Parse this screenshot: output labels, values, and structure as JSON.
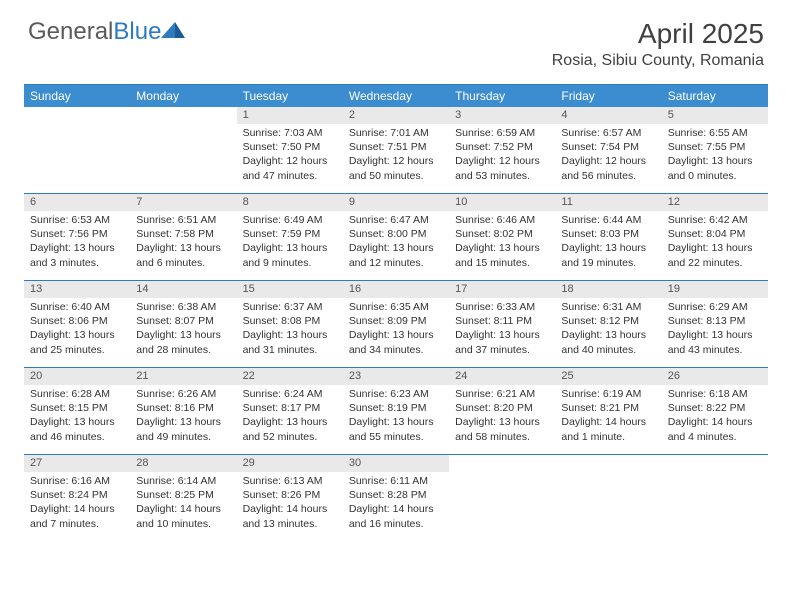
{
  "logo": {
    "text_general": "General",
    "text_blue": "Blue"
  },
  "title": "April 2025",
  "location": "Rosia, Sibiu County, Romania",
  "colors": {
    "header_blue": "#3c8cd0",
    "rule_blue": "#2f7bbf",
    "daybar_gray": "#e9e9e9",
    "text_gray": "#555555",
    "body_text": "#333333",
    "logo_gray": "#5a5a5a"
  },
  "dow": [
    "Sunday",
    "Monday",
    "Tuesday",
    "Wednesday",
    "Thursday",
    "Friday",
    "Saturday"
  ],
  "weeks": [
    [
      {
        "n": "",
        "sunrise": "",
        "sunset": "",
        "daylight": ""
      },
      {
        "n": "",
        "sunrise": "",
        "sunset": "",
        "daylight": ""
      },
      {
        "n": "1",
        "sunrise": "Sunrise: 7:03 AM",
        "sunset": "Sunset: 7:50 PM",
        "daylight": "Daylight: 12 hours and 47 minutes."
      },
      {
        "n": "2",
        "sunrise": "Sunrise: 7:01 AM",
        "sunset": "Sunset: 7:51 PM",
        "daylight": "Daylight: 12 hours and 50 minutes."
      },
      {
        "n": "3",
        "sunrise": "Sunrise: 6:59 AM",
        "sunset": "Sunset: 7:52 PM",
        "daylight": "Daylight: 12 hours and 53 minutes."
      },
      {
        "n": "4",
        "sunrise": "Sunrise: 6:57 AM",
        "sunset": "Sunset: 7:54 PM",
        "daylight": "Daylight: 12 hours and 56 minutes."
      },
      {
        "n": "5",
        "sunrise": "Sunrise: 6:55 AM",
        "sunset": "Sunset: 7:55 PM",
        "daylight": "Daylight: 13 hours and 0 minutes."
      }
    ],
    [
      {
        "n": "6",
        "sunrise": "Sunrise: 6:53 AM",
        "sunset": "Sunset: 7:56 PM",
        "daylight": "Daylight: 13 hours and 3 minutes."
      },
      {
        "n": "7",
        "sunrise": "Sunrise: 6:51 AM",
        "sunset": "Sunset: 7:58 PM",
        "daylight": "Daylight: 13 hours and 6 minutes."
      },
      {
        "n": "8",
        "sunrise": "Sunrise: 6:49 AM",
        "sunset": "Sunset: 7:59 PM",
        "daylight": "Daylight: 13 hours and 9 minutes."
      },
      {
        "n": "9",
        "sunrise": "Sunrise: 6:47 AM",
        "sunset": "Sunset: 8:00 PM",
        "daylight": "Daylight: 13 hours and 12 minutes."
      },
      {
        "n": "10",
        "sunrise": "Sunrise: 6:46 AM",
        "sunset": "Sunset: 8:02 PM",
        "daylight": "Daylight: 13 hours and 15 minutes."
      },
      {
        "n": "11",
        "sunrise": "Sunrise: 6:44 AM",
        "sunset": "Sunset: 8:03 PM",
        "daylight": "Daylight: 13 hours and 19 minutes."
      },
      {
        "n": "12",
        "sunrise": "Sunrise: 6:42 AM",
        "sunset": "Sunset: 8:04 PM",
        "daylight": "Daylight: 13 hours and 22 minutes."
      }
    ],
    [
      {
        "n": "13",
        "sunrise": "Sunrise: 6:40 AM",
        "sunset": "Sunset: 8:06 PM",
        "daylight": "Daylight: 13 hours and 25 minutes."
      },
      {
        "n": "14",
        "sunrise": "Sunrise: 6:38 AM",
        "sunset": "Sunset: 8:07 PM",
        "daylight": "Daylight: 13 hours and 28 minutes."
      },
      {
        "n": "15",
        "sunrise": "Sunrise: 6:37 AM",
        "sunset": "Sunset: 8:08 PM",
        "daylight": "Daylight: 13 hours and 31 minutes."
      },
      {
        "n": "16",
        "sunrise": "Sunrise: 6:35 AM",
        "sunset": "Sunset: 8:09 PM",
        "daylight": "Daylight: 13 hours and 34 minutes."
      },
      {
        "n": "17",
        "sunrise": "Sunrise: 6:33 AM",
        "sunset": "Sunset: 8:11 PM",
        "daylight": "Daylight: 13 hours and 37 minutes."
      },
      {
        "n": "18",
        "sunrise": "Sunrise: 6:31 AM",
        "sunset": "Sunset: 8:12 PM",
        "daylight": "Daylight: 13 hours and 40 minutes."
      },
      {
        "n": "19",
        "sunrise": "Sunrise: 6:29 AM",
        "sunset": "Sunset: 8:13 PM",
        "daylight": "Daylight: 13 hours and 43 minutes."
      }
    ],
    [
      {
        "n": "20",
        "sunrise": "Sunrise: 6:28 AM",
        "sunset": "Sunset: 8:15 PM",
        "daylight": "Daylight: 13 hours and 46 minutes."
      },
      {
        "n": "21",
        "sunrise": "Sunrise: 6:26 AM",
        "sunset": "Sunset: 8:16 PM",
        "daylight": "Daylight: 13 hours and 49 minutes."
      },
      {
        "n": "22",
        "sunrise": "Sunrise: 6:24 AM",
        "sunset": "Sunset: 8:17 PM",
        "daylight": "Daylight: 13 hours and 52 minutes."
      },
      {
        "n": "23",
        "sunrise": "Sunrise: 6:23 AM",
        "sunset": "Sunset: 8:19 PM",
        "daylight": "Daylight: 13 hours and 55 minutes."
      },
      {
        "n": "24",
        "sunrise": "Sunrise: 6:21 AM",
        "sunset": "Sunset: 8:20 PM",
        "daylight": "Daylight: 13 hours and 58 minutes."
      },
      {
        "n": "25",
        "sunrise": "Sunrise: 6:19 AM",
        "sunset": "Sunset: 8:21 PM",
        "daylight": "Daylight: 14 hours and 1 minute."
      },
      {
        "n": "26",
        "sunrise": "Sunrise: 6:18 AM",
        "sunset": "Sunset: 8:22 PM",
        "daylight": "Daylight: 14 hours and 4 minutes."
      }
    ],
    [
      {
        "n": "27",
        "sunrise": "Sunrise: 6:16 AM",
        "sunset": "Sunset: 8:24 PM",
        "daylight": "Daylight: 14 hours and 7 minutes."
      },
      {
        "n": "28",
        "sunrise": "Sunrise: 6:14 AM",
        "sunset": "Sunset: 8:25 PM",
        "daylight": "Daylight: 14 hours and 10 minutes."
      },
      {
        "n": "29",
        "sunrise": "Sunrise: 6:13 AM",
        "sunset": "Sunset: 8:26 PM",
        "daylight": "Daylight: 14 hours and 13 minutes."
      },
      {
        "n": "30",
        "sunrise": "Sunrise: 6:11 AM",
        "sunset": "Sunset: 8:28 PM",
        "daylight": "Daylight: 14 hours and 16 minutes."
      },
      {
        "n": "",
        "sunrise": "",
        "sunset": "",
        "daylight": ""
      },
      {
        "n": "",
        "sunrise": "",
        "sunset": "",
        "daylight": ""
      },
      {
        "n": "",
        "sunrise": "",
        "sunset": "",
        "daylight": ""
      }
    ]
  ]
}
